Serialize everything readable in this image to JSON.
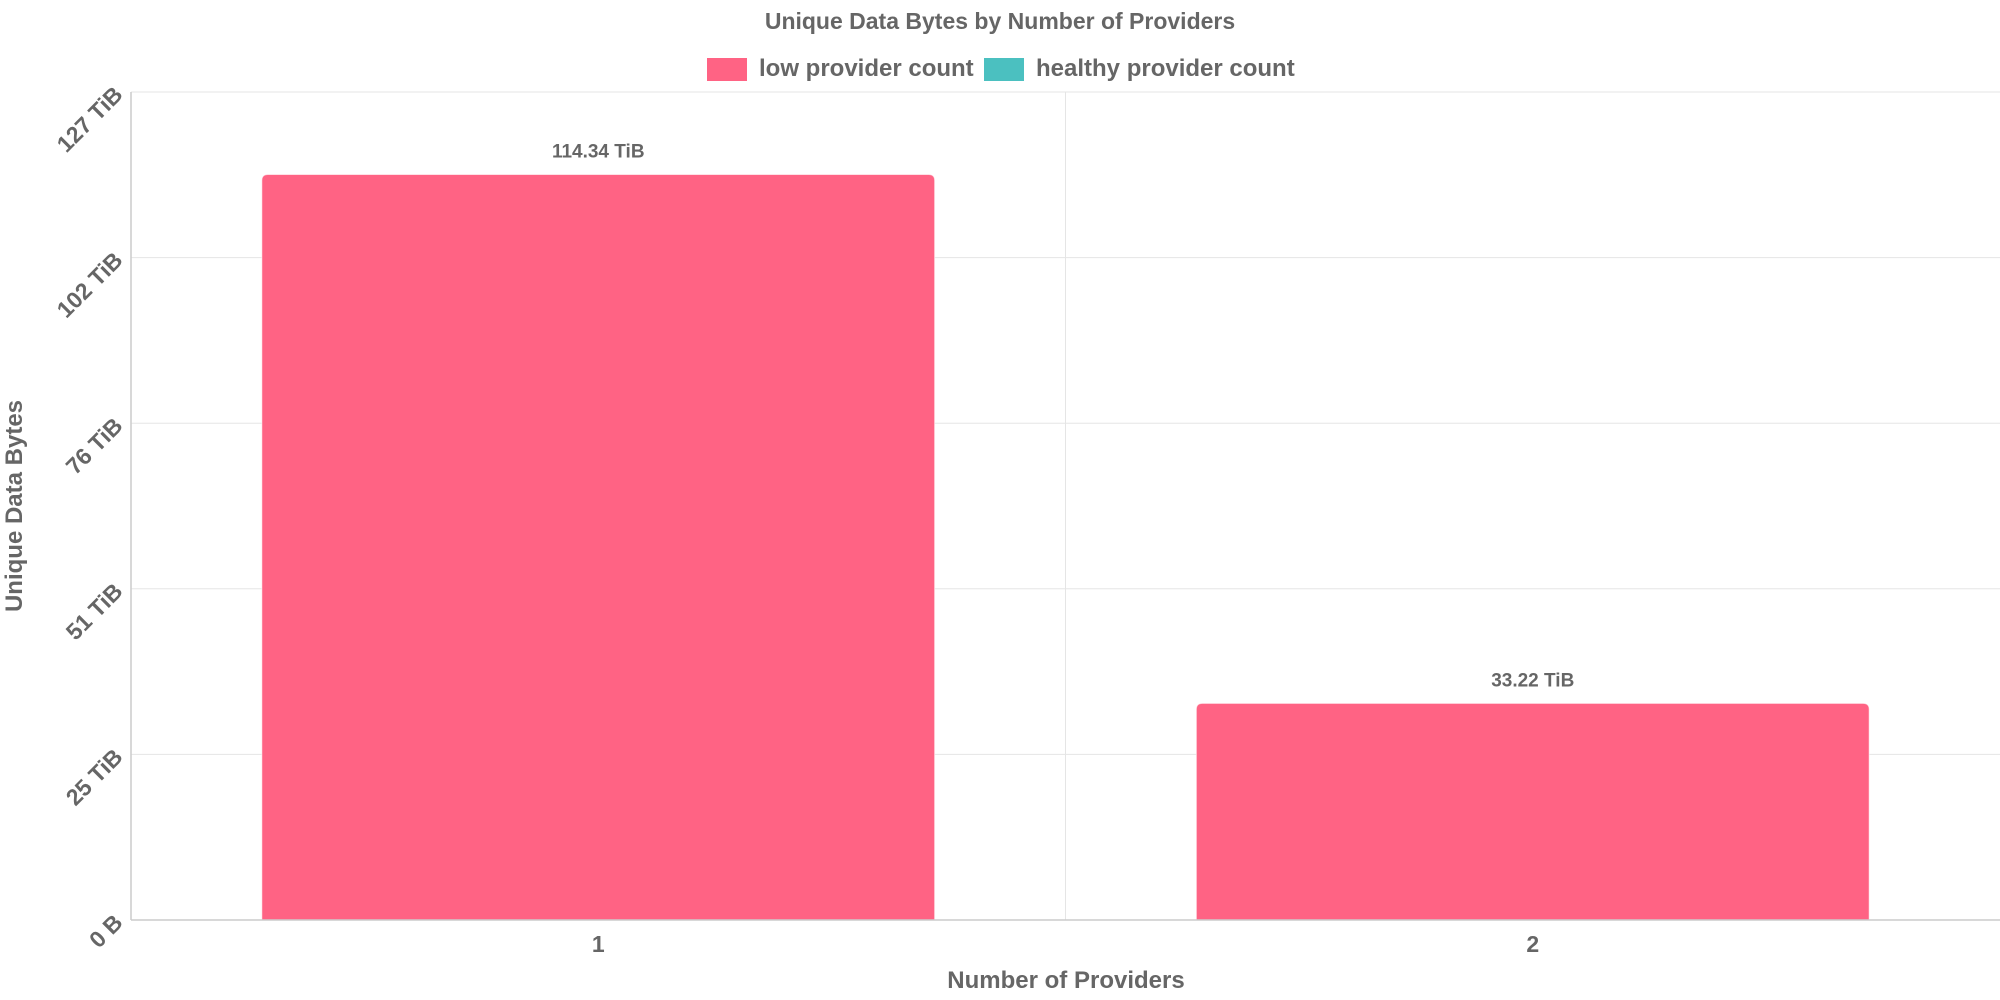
{
  "chart_data": {
    "type": "bar",
    "title": "Unique Data Bytes by Number of Providers",
    "xlabel": "Number of Providers",
    "ylabel": "Unique Data Bytes",
    "categories": [
      "1",
      "2"
    ],
    "series": [
      {
        "name": "low provider count",
        "color": "#ff6384",
        "values": [
          114.34,
          33.22
        ],
        "labels": [
          "114.34 TiB",
          "33.22 TiB"
        ]
      },
      {
        "name": "healthy provider count",
        "color": "#4bc0c0",
        "values": [
          null,
          null
        ],
        "labels": []
      }
    ],
    "y_unit": "TiB",
    "ylim": [
      0,
      127
    ],
    "yticks": [
      {
        "value": 0,
        "label": "0 B"
      },
      {
        "value": 25.4,
        "label": "25 TiB"
      },
      {
        "value": 50.8,
        "label": "51 TiB"
      },
      {
        "value": 76.2,
        "label": "76 TiB"
      },
      {
        "value": 101.6,
        "label": "102 TiB"
      },
      {
        "value": 127,
        "label": "127 TiB"
      }
    ],
    "grid": true,
    "legend_position": "top"
  }
}
